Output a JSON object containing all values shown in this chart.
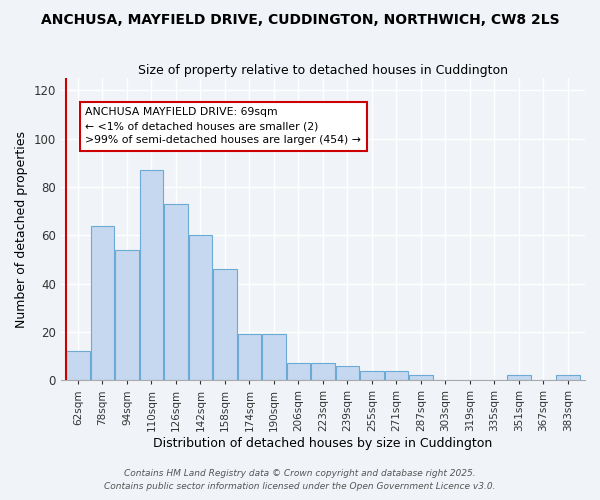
{
  "title": "ANCHUSA, MAYFIELD DRIVE, CUDDINGTON, NORTHWICH, CW8 2LS",
  "subtitle": "Size of property relative to detached houses in Cuddington",
  "xlabel": "Distribution of detached houses by size in Cuddington",
  "ylabel": "Number of detached properties",
  "bins": [
    "62sqm",
    "78sqm",
    "94sqm",
    "110sqm",
    "126sqm",
    "142sqm",
    "158sqm",
    "174sqm",
    "190sqm",
    "206sqm",
    "223sqm",
    "239sqm",
    "255sqm",
    "271sqm",
    "287sqm",
    "303sqm",
    "319sqm",
    "335sqm",
    "351sqm",
    "367sqm",
    "383sqm"
  ],
  "values": [
    12,
    64,
    54,
    87,
    73,
    60,
    46,
    19,
    19,
    7,
    7,
    6,
    4,
    4,
    2,
    0,
    0,
    0,
    2,
    0,
    2
  ],
  "bar_color": "#c5d8f0",
  "bar_edge_color": "#6aaad4",
  "marker_line_color": "#cc0000",
  "annotation_lines": [
    "ANCHUSA MAYFIELD DRIVE: 69sqm",
    "← <1% of detached houses are smaller (2)",
    ">99% of semi-detached houses are larger (454) →"
  ],
  "annotation_box_edge": "#cc0000",
  "annotation_box_face": "#ffffff",
  "background_color": "#f0f4f8",
  "ylim": [
    0,
    125
  ],
  "yticks": [
    0,
    20,
    40,
    60,
    80,
    100,
    120
  ],
  "footer_line1": "Contains HM Land Registry data © Crown copyright and database right 2025.",
  "footer_line2": "Contains public sector information licensed under the Open Government Licence v3.0."
}
